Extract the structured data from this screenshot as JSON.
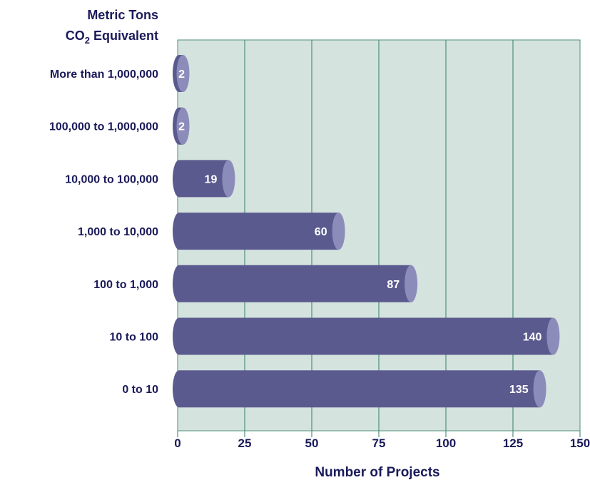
{
  "chart_data": {
    "type": "bar",
    "orientation": "horizontal",
    "y_title_line1": "Metric Tons",
    "y_title_line2_main": "CO",
    "y_title_line2_sub": "2",
    "y_title_line2_rest": " Equivalent",
    "xlabel": "Number of Projects",
    "categories": [
      "More than 1,000,000",
      "100,000 to 1,000,000",
      "10,000 to 100,000",
      "1,000 to 10,000",
      "100 to 1,000",
      "10 to 100",
      "0 to 10"
    ],
    "values": [
      2,
      2,
      19,
      60,
      87,
      140,
      135
    ],
    "data_labels": [
      "2",
      "2",
      "19",
      "60",
      "87",
      "140",
      "135"
    ],
    "xlim": [
      0,
      150
    ],
    "xticks": [
      0,
      25,
      50,
      75,
      100,
      125,
      150
    ],
    "xtick_labels": [
      "0",
      "25",
      "50",
      "75",
      "100",
      "125",
      "150"
    ],
    "grid": true,
    "colors": {
      "bar": "#5a5a8e",
      "bar_cap": "#8c8cbb",
      "plot_bg": "#d5e3df",
      "grid": "#4f8f7a",
      "text": "#1a1a5a"
    }
  }
}
